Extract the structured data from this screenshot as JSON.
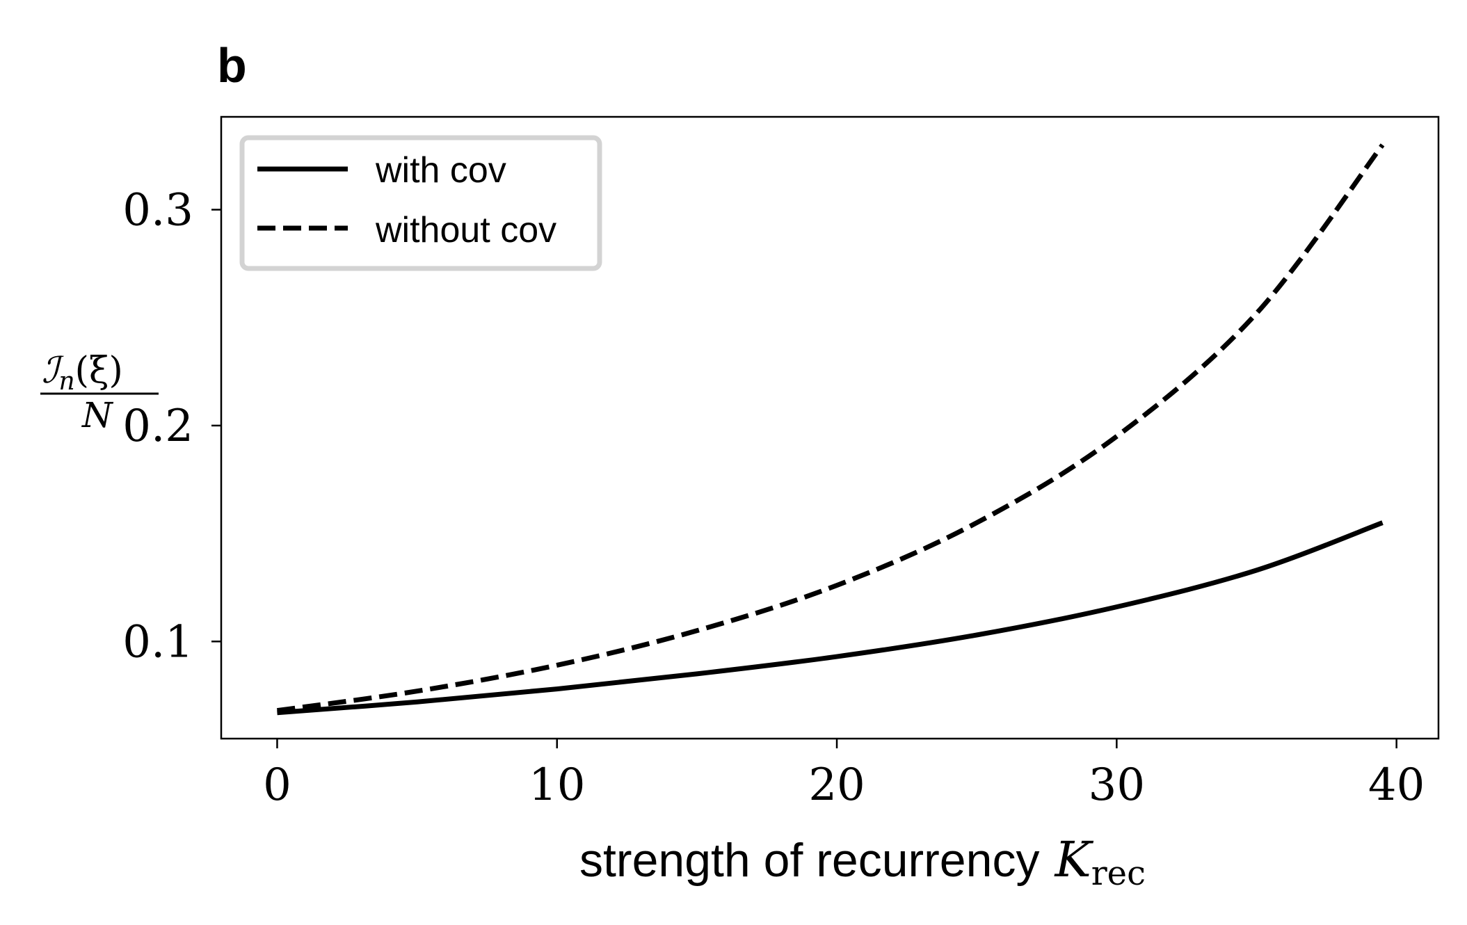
{
  "panel_label": "b",
  "chart_data": {
    "type": "line",
    "xlabel": "strength of recurrency",
    "xlabel_symbol": "K",
    "xlabel_subscript": "rec",
    "ylabel_numerator": "ℐ",
    "ylabel_numerator_sub": "n",
    "ylabel_numerator_arg": "(ξ)",
    "ylabel_denominator": "N",
    "xlim": [
      -2,
      41.5
    ],
    "ylim": [
      0.055,
      0.343
    ],
    "xticks": [
      0,
      10,
      20,
      30,
      40
    ],
    "xtick_labels": [
      "0",
      "10",
      "20",
      "30",
      "40"
    ],
    "yticks": [
      0.1,
      0.2,
      0.3
    ],
    "ytick_labels": [
      "0.1",
      "0.2",
      "0.3"
    ],
    "legend_position": "top-left",
    "series": [
      {
        "name": "with cov",
        "style": "solid",
        "color": "#000000",
        "x": [
          0,
          5,
          10,
          15,
          20,
          25,
          30,
          35,
          39.5
        ],
        "y": [
          0.067,
          0.072,
          0.078,
          0.085,
          0.093,
          0.103,
          0.116,
          0.133,
          0.155
        ]
      },
      {
        "name": "without cov",
        "style": "dashed",
        "color": "#000000",
        "x": [
          0,
          5,
          10,
          15,
          20,
          25,
          30,
          35,
          39.5
        ],
        "y": [
          0.068,
          0.077,
          0.089,
          0.105,
          0.126,
          0.155,
          0.195,
          0.252,
          0.33
        ]
      }
    ]
  }
}
